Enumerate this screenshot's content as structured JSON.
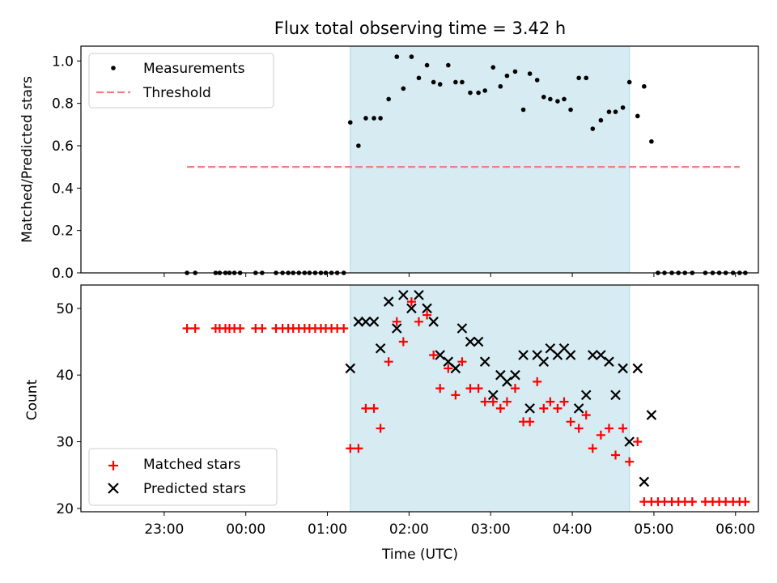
{
  "chart_data": {
    "title": "Flux total observing time = 3.42 h",
    "xlabel": "Time (UTC)",
    "xlim_hours": [
      -1.02,
      7.28
    ],
    "xticks": [
      {
        "h": 0.0,
        "label": "23:00"
      },
      {
        "h": 1.0,
        "label": "00:00"
      },
      {
        "h": 2.0,
        "label": "01:00"
      },
      {
        "h": 3.0,
        "label": "02:00"
      },
      {
        "h": 4.0,
        "label": "03:00"
      },
      {
        "h": 5.0,
        "label": "04:00"
      },
      {
        "h": 6.0,
        "label": "05:00"
      },
      {
        "h": 7.0,
        "label": "06:00"
      }
    ],
    "observing_span_hours": [
      2.28,
      5.7
    ],
    "span_color": "#add8e6",
    "top": {
      "type": "scatter",
      "ylabel": "Matched/Predicted stars",
      "ylim": [
        0,
        1.07
      ],
      "yticks": [
        0.0,
        0.2,
        0.4,
        0.6,
        0.8,
        1.0
      ],
      "threshold": {
        "value": 0.5,
        "x_from": 0.28,
        "x_to": 7.05,
        "color": "#f08080"
      },
      "legend": {
        "position": "upper-left",
        "measurements_label": "Measurements",
        "threshold_label": "Threshold"
      },
      "x": [
        0.28,
        0.38,
        0.63,
        0.68,
        0.75,
        0.8,
        0.86,
        0.93,
        1.12,
        1.2,
        1.37,
        1.45,
        1.52,
        1.58,
        1.65,
        1.72,
        1.78,
        1.85,
        1.92,
        1.98,
        2.05,
        2.12,
        2.2,
        2.28,
        2.38,
        2.47,
        2.57,
        2.65,
        2.75,
        2.85,
        2.93,
        3.03,
        3.12,
        3.22,
        3.3,
        3.38,
        3.48,
        3.57,
        3.65,
        3.75,
        3.85,
        3.93,
        4.03,
        4.12,
        4.2,
        4.3,
        4.4,
        4.48,
        4.57,
        4.65,
        4.73,
        4.82,
        4.9,
        4.98,
        5.08,
        5.17,
        5.25,
        5.35,
        5.45,
        5.53,
        5.62,
        5.7,
        5.8,
        5.88,
        5.97,
        6.05,
        6.13,
        6.22,
        6.3,
        6.38,
        6.47,
        6.63,
        6.72,
        6.8,
        6.88,
        6.97,
        7.05,
        7.12
      ],
      "y": [
        0,
        0,
        0,
        0,
        0,
        0,
        0,
        0,
        0,
        0,
        0,
        0,
        0,
        0,
        0,
        0,
        0,
        0,
        0,
        0,
        0,
        0,
        0,
        0.71,
        0.6,
        0.73,
        0.73,
        0.73,
        0.82,
        1.02,
        0.87,
        1.02,
        0.92,
        0.98,
        0.9,
        0.89,
        0.98,
        0.9,
        0.9,
        0.85,
        0.85,
        0.86,
        0.97,
        0.88,
        0.93,
        0.95,
        0.77,
        0.94,
        0.91,
        0.83,
        0.82,
        0.81,
        0.82,
        0.77,
        0.92,
        0.92,
        0.68,
        0.72,
        0.76,
        0.76,
        0.78,
        0.9,
        0.74,
        0.88,
        0.62,
        0,
        0,
        0,
        0,
        0,
        0,
        0,
        0,
        0,
        0,
        0,
        0,
        0
      ]
    },
    "bottom": {
      "type": "scatter",
      "ylabel": "Count",
      "ylim": [
        19.5,
        53.5
      ],
      "yticks": [
        20,
        30,
        40,
        50
      ],
      "legend": {
        "position": "lower-left",
        "matched_label": "Matched stars",
        "predicted_label": "Predicted stars"
      },
      "matched": {
        "x": [
          0.28,
          0.38,
          0.63,
          0.68,
          0.75,
          0.8,
          0.86,
          0.93,
          1.12,
          1.2,
          1.37,
          1.45,
          1.52,
          1.58,
          1.65,
          1.72,
          1.78,
          1.85,
          1.92,
          1.98,
          2.05,
          2.12,
          2.2,
          2.28,
          2.38,
          2.47,
          2.57,
          2.65,
          2.75,
          2.85,
          2.93,
          3.03,
          3.12,
          3.22,
          3.3,
          3.38,
          3.48,
          3.57,
          3.65,
          3.75,
          3.85,
          3.93,
          4.03,
          4.12,
          4.2,
          4.3,
          4.4,
          4.48,
          4.57,
          4.65,
          4.73,
          4.82,
          4.9,
          4.98,
          5.08,
          5.17,
          5.25,
          5.35,
          5.45,
          5.53,
          5.62,
          5.7,
          5.8,
          5.88,
          5.97,
          6.05,
          6.13,
          6.22,
          6.3,
          6.38,
          6.47,
          6.63,
          6.72,
          6.8,
          6.88,
          6.97,
          7.05,
          7.12
        ],
        "y": [
          47,
          47,
          47,
          47,
          47,
          47,
          47,
          47,
          47,
          47,
          47,
          47,
          47,
          47,
          47,
          47,
          47,
          47,
          47,
          47,
          47,
          47,
          47,
          29,
          29,
          35,
          35,
          32,
          42,
          48,
          45,
          51,
          48,
          49,
          43,
          38,
          41,
          37,
          42,
          38,
          38,
          36,
          36,
          35,
          36,
          38,
          33,
          33,
          39,
          35,
          36,
          35,
          36,
          33,
          32,
          34,
          29,
          31,
          32,
          28,
          32,
          27,
          30,
          21,
          21,
          21,
          21,
          21,
          21,
          21,
          21,
          21,
          21,
          21,
          21,
          21,
          21,
          21
        ]
      },
      "predicted": {
        "x": [
          2.28,
          2.38,
          2.47,
          2.57,
          2.65,
          2.75,
          2.85,
          2.93,
          3.03,
          3.12,
          3.22,
          3.3,
          3.38,
          3.48,
          3.57,
          3.65,
          3.75,
          3.85,
          3.93,
          4.03,
          4.12,
          4.2,
          4.3,
          4.4,
          4.48,
          4.57,
          4.65,
          4.73,
          4.82,
          4.9,
          4.98,
          5.08,
          5.17,
          5.25,
          5.35,
          5.45,
          5.53,
          5.62,
          5.7,
          5.8,
          5.88,
          5.97
        ],
        "y": [
          41,
          48,
          48,
          48,
          44,
          51,
          47,
          52,
          50,
          52,
          50,
          48,
          43,
          42,
          41,
          47,
          45,
          45,
          42,
          37,
          40,
          39,
          40,
          43,
          35,
          43,
          42,
          44,
          43,
          44,
          43,
          35,
          37,
          43,
          43,
          42,
          37,
          41,
          30,
          41,
          24,
          34
        ]
      }
    }
  }
}
